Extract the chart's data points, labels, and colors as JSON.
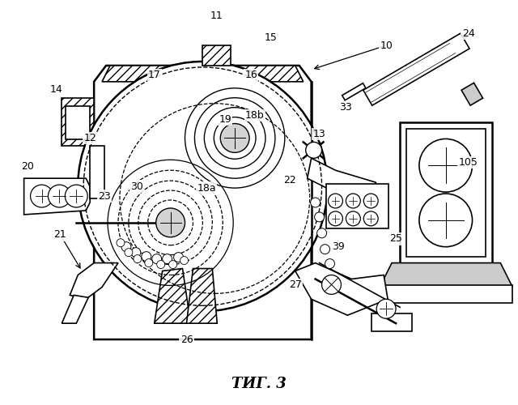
{
  "title": "ΤИГ. 3",
  "background_color": "#ffffff",
  "line_color": "#000000",
  "figsize": [
    6.4,
    5.0
  ],
  "dpi": 100
}
